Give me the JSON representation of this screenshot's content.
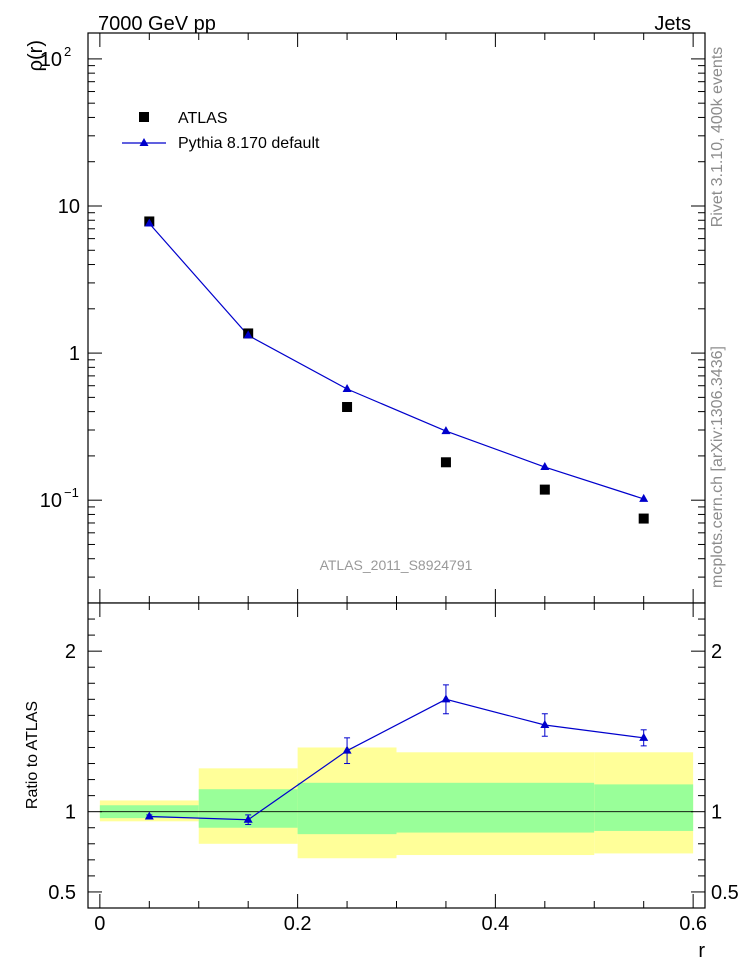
{
  "header": {
    "left": "7000 GeV pp",
    "right": "Jets"
  },
  "side_label_top": "Rivet 3.1.10,  400k events",
  "side_label_bottom": "mcplots.cern.ch [arXiv:1306.3436]",
  "watermark": "ATLAS_2011_S8924791",
  "colors": {
    "data": "#000000",
    "mc": "#0000cc",
    "band_inner": "#99ff99",
    "band_outer": "#ffff99"
  },
  "chart_data": [
    {
      "type": "scatter",
      "panel": "main",
      "ylabel": "ρ(r)",
      "yscale": "log",
      "ylim": [
        0.02,
        150
      ],
      "xlim": [
        -0.012,
        0.612
      ],
      "y_tick_labels": [
        "10",
        "1"
      ],
      "y_tick_values": [
        10,
        1
      ],
      "y_pow_labels": [
        {
          "base": "10",
          "exp": "2",
          "value": 100
        },
        {
          "base": "10",
          "exp": "−1",
          "value": 0.1
        }
      ],
      "legend": {
        "placement": "top-left",
        "entries": [
          "ATLAS",
          "Pythia 8.170 default"
        ]
      },
      "series": [
        {
          "name": "ATLAS",
          "marker": "square",
          "x": [
            0.05,
            0.15,
            0.25,
            0.35,
            0.45,
            0.55
          ],
          "y": [
            7.85,
            1.36,
            0.43,
            0.181,
            0.118,
            0.075
          ]
        },
        {
          "name": "Pythia 8.170 default",
          "marker": "triangle",
          "line": true,
          "x": [
            0.05,
            0.15,
            0.25,
            0.35,
            0.45,
            0.55
          ],
          "y": [
            7.6,
            1.32,
            0.57,
            0.295,
            0.168,
            0.102
          ]
        }
      ]
    },
    {
      "type": "line",
      "panel": "ratio",
      "ylabel": "Ratio to ATLAS",
      "xlabel": "r",
      "ylim": [
        0.4,
        2.3
      ],
      "xlim": [
        -0.012,
        0.612
      ],
      "x_ticks": [
        "0",
        "0.2",
        "0.4",
        "0.6"
      ],
      "x_tick_values": [
        0,
        0.2,
        0.4,
        0.6
      ],
      "y_ticks": [
        "2",
        "1",
        "0.5"
      ],
      "y_tick_values": [
        2,
        1,
        0.5
      ],
      "bands": [
        {
          "x0": 0.0,
          "x1": 0.1,
          "inner": [
            0.96,
            1.04
          ],
          "outer": [
            0.94,
            1.07
          ]
        },
        {
          "x0": 0.1,
          "x1": 0.2,
          "inner": [
            0.9,
            1.14
          ],
          "outer": [
            0.8,
            1.27
          ]
        },
        {
          "x0": 0.2,
          "x1": 0.3,
          "inner": [
            0.86,
            1.18
          ],
          "outer": [
            0.71,
            1.4
          ]
        },
        {
          "x0": 0.3,
          "x1": 0.5,
          "inner": [
            0.87,
            1.18
          ],
          "outer": [
            0.73,
            1.37
          ]
        },
        {
          "x0": 0.5,
          "x1": 0.6,
          "inner": [
            0.88,
            1.17
          ],
          "outer": [
            0.74,
            1.37
          ]
        }
      ],
      "series": [
        {
          "name": "Pythia 8.170 default",
          "x": [
            0.05,
            0.15,
            0.25,
            0.35,
            0.45,
            0.55
          ],
          "y": [
            0.97,
            0.95,
            1.38,
            1.7,
            1.54,
            1.46
          ],
          "err": [
            0.01,
            0.03,
            0.08,
            0.09,
            0.07,
            0.05
          ]
        }
      ]
    }
  ]
}
